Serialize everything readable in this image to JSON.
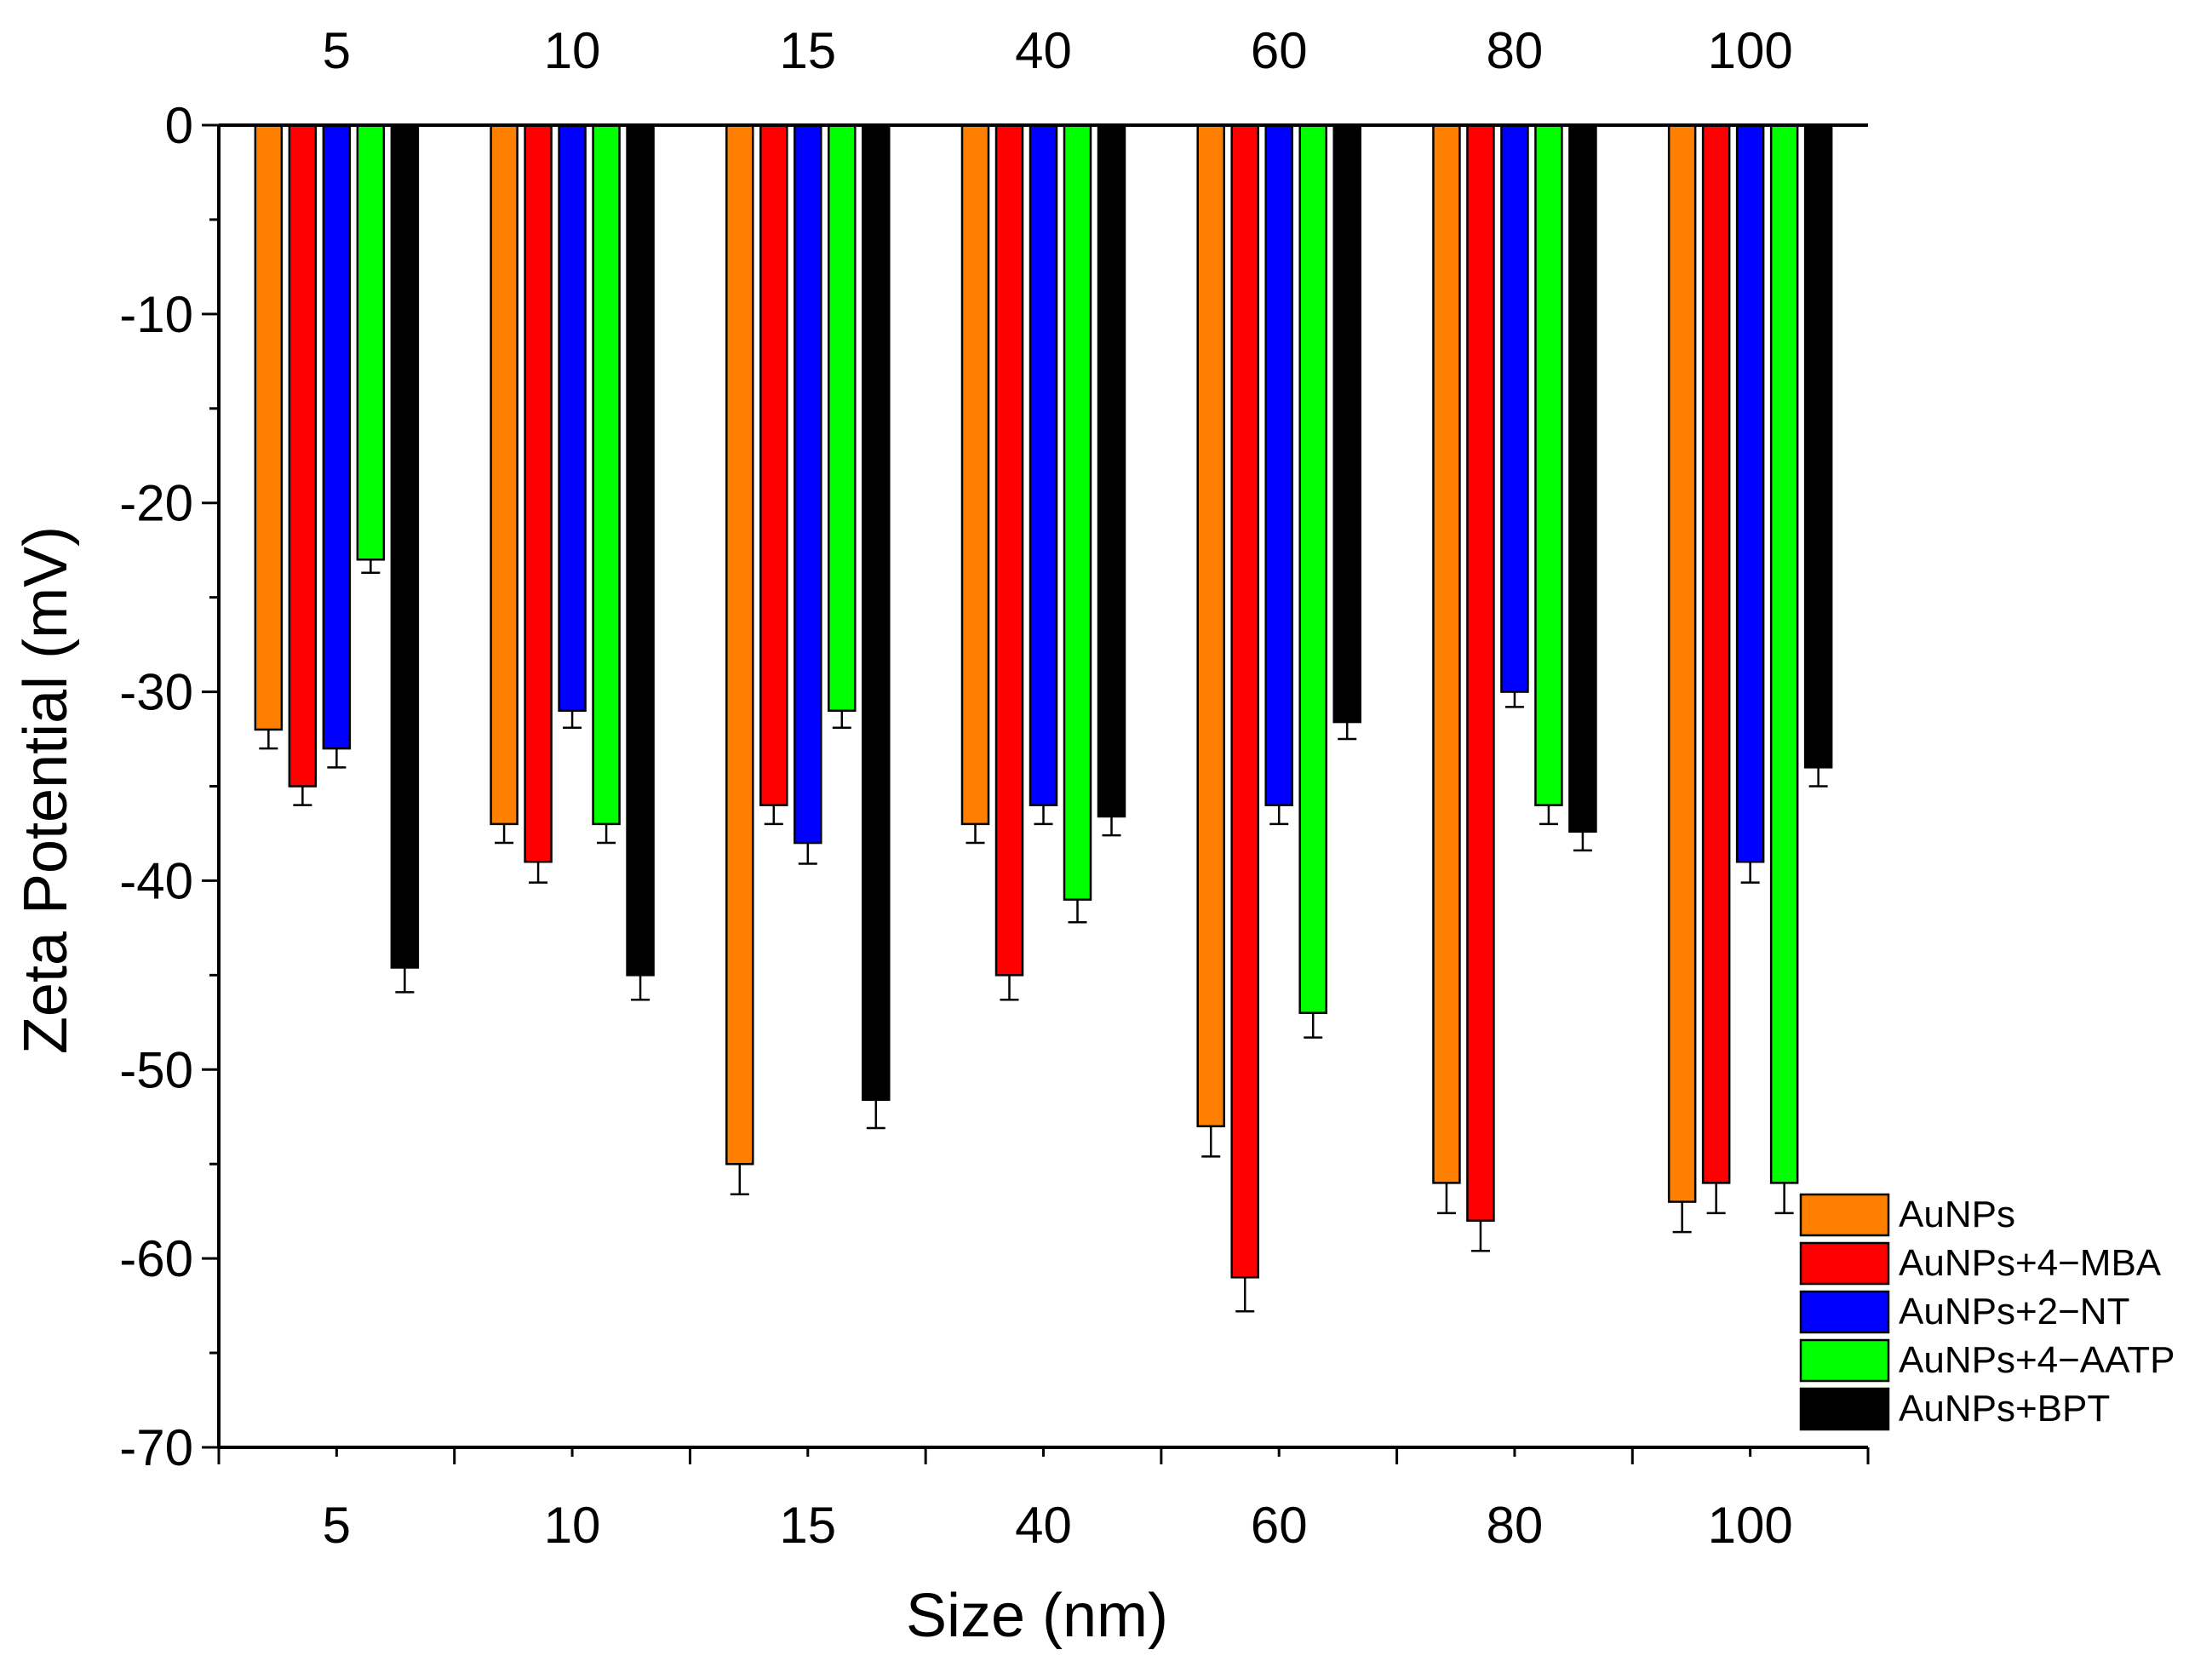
{
  "chart_data": {
    "type": "bar",
    "title": "",
    "xlabel": "Size (nm)",
    "ylabel": "Zeta Potential (mV)",
    "categories": [
      "5",
      "10",
      "15",
      "40",
      "60",
      "80",
      "100"
    ],
    "ylim": [
      -70,
      0
    ],
    "yticks": [
      0,
      -10,
      -20,
      -30,
      -40,
      -50,
      -60,
      -70
    ],
    "grid": false,
    "legend_position": "bottom-right",
    "series": [
      {
        "name": "AuNPs",
        "color": "#ff8000",
        "values": [
          -32,
          -37,
          -55,
          -37,
          -53,
          -56,
          -57
        ],
        "errors": [
          1.0,
          1.0,
          1.6,
          1.0,
          1.6,
          1.6,
          1.6
        ]
      },
      {
        "name": "AuNPs+4−MBA",
        "color": "#ff0000",
        "values": [
          -35,
          -39,
          -36,
          -45,
          -61,
          -58,
          -56
        ],
        "errors": [
          1.0,
          1.1,
          1.0,
          1.3,
          1.8,
          1.6,
          1.6
        ]
      },
      {
        "name": "AuNPs+2−NT",
        "color": "#0000ff",
        "values": [
          -33,
          -31,
          -38,
          -36,
          -36,
          -30,
          -39
        ],
        "errors": [
          1.0,
          0.9,
          1.1,
          1.0,
          1.0,
          0.8,
          1.1
        ]
      },
      {
        "name": "AuNPs+4−AATP",
        "color": "#00ff00",
        "values": [
          -23,
          -37,
          -31,
          -41,
          -47,
          -36,
          -56
        ],
        "errors": [
          0.7,
          1.0,
          0.9,
          1.2,
          1.3,
          1.0,
          1.6
        ]
      },
      {
        "name": "AuNPs+BPT",
        "color": "#000000",
        "values": [
          -44.6,
          -45,
          -51.6,
          -36.6,
          -31.6,
          -37.4,
          -34
        ],
        "errors": [
          1.3,
          1.3,
          1.5,
          1.0,
          0.9,
          1.0,
          1.0
        ]
      }
    ]
  }
}
